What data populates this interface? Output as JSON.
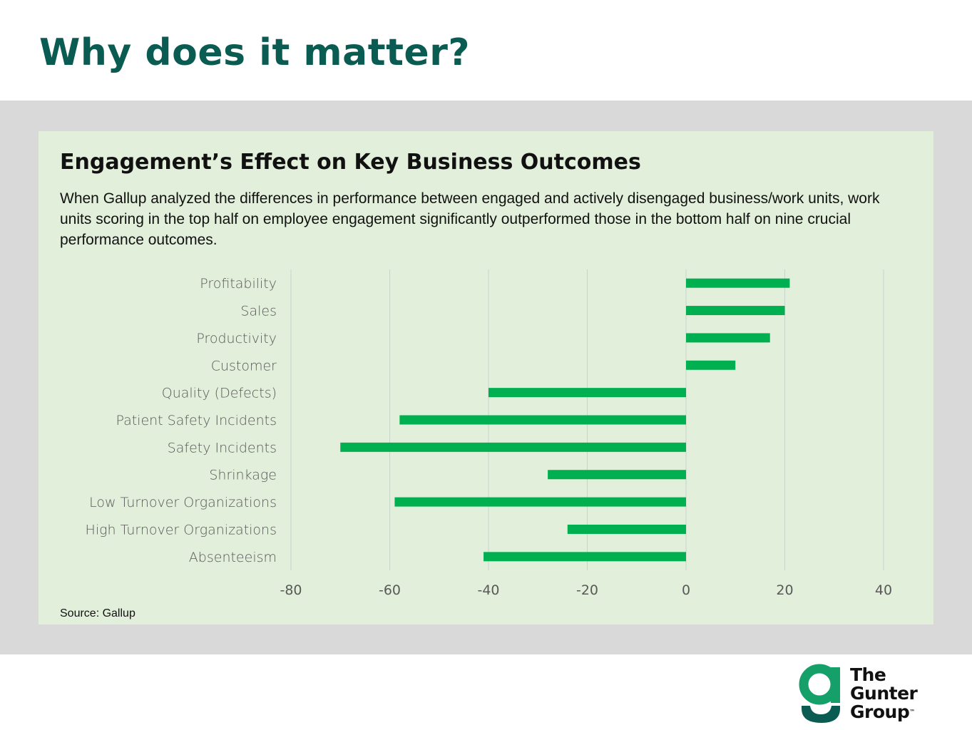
{
  "slide": {
    "title": "Why does it matter?"
  },
  "card": {
    "title": "Engagement’s Effect on Key Business Outcomes",
    "description": "When Gallup analyzed the differences in performance between engaged and actively disengaged business/work units, work units scoring in the top half on employee engagement significantly outperformed those in the bottom half on nine crucial performance outcomes.",
    "source": "Source: Gallup"
  },
  "logo": {
    "line1": "The",
    "line2": "Gunter",
    "line3": "Group",
    "tm": "™"
  },
  "colors": {
    "bar": "#00b050",
    "title": "#0a5c52",
    "card_bg": "#e2efda",
    "band": "#d9d9d9"
  },
  "chart_data": {
    "type": "bar",
    "orientation": "horizontal",
    "title": "Engagement’s Effect on Key Business Outcomes",
    "categories": [
      "Profitability",
      "Sales",
      "Productivity",
      "Customer",
      "Quality (Defects)",
      "Patient Safety Incidents",
      "Safety Incidents",
      "Shrinkage",
      "Low Turnover Organizations",
      "High Turnover Organizations",
      "Absenteeism"
    ],
    "values": [
      21,
      20,
      17,
      10,
      -40,
      -58,
      -70,
      -28,
      -59,
      -24,
      -41
    ],
    "xlim": [
      -80,
      40
    ],
    "xticks": [
      -80,
      -60,
      -40,
      -20,
      0,
      20,
      40
    ],
    "xlabel": "",
    "ylabel": "",
    "grid": true,
    "legend": "none"
  }
}
